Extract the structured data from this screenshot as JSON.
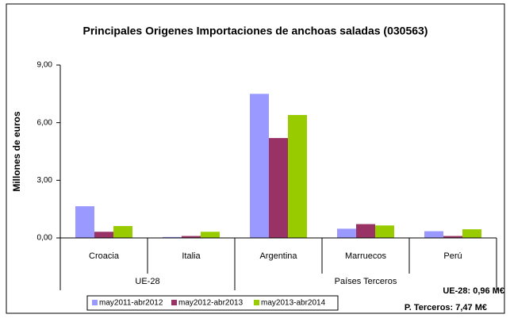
{
  "chart_data": {
    "type": "bar",
    "title": "Principales Origenes Importaciones de anchoas saladas (030563)",
    "y_label": "Millones de euros",
    "categories": [
      "Croacia",
      "Italia",
      "Argentina",
      "Marruecos",
      "Perú"
    ],
    "groups": [
      {
        "name": "UE-28",
        "count": 2
      },
      {
        "name": "Países Terceros",
        "count": 3
      }
    ],
    "series": [
      {
        "name": "may2011-abr2012",
        "color": "#9999ff",
        "values": [
          1.65,
          0.05,
          7.5,
          0.48,
          0.35
        ]
      },
      {
        "name": "may2012-abr2013",
        "color": "#993366",
        "values": [
          0.32,
          0.1,
          5.2,
          0.72,
          0.1
        ]
      },
      {
        "name": "may2013-abr2014",
        "color": "#99cc00",
        "values": [
          0.62,
          0.32,
          6.4,
          0.65,
          0.45
        ]
      }
    ],
    "ylim": [
      0,
      9
    ],
    "yticks": [
      {
        "value": 0,
        "label": "0,00"
      },
      {
        "value": 3,
        "label": "3,00"
      },
      {
        "value": 6,
        "label": "6,00"
      },
      {
        "value": 9,
        "label": "9,00"
      }
    ],
    "annotations": [
      "UE-28: 0,96 M€",
      "P. Terceros: 7,47 M€"
    ],
    "legend": "bottom"
  }
}
